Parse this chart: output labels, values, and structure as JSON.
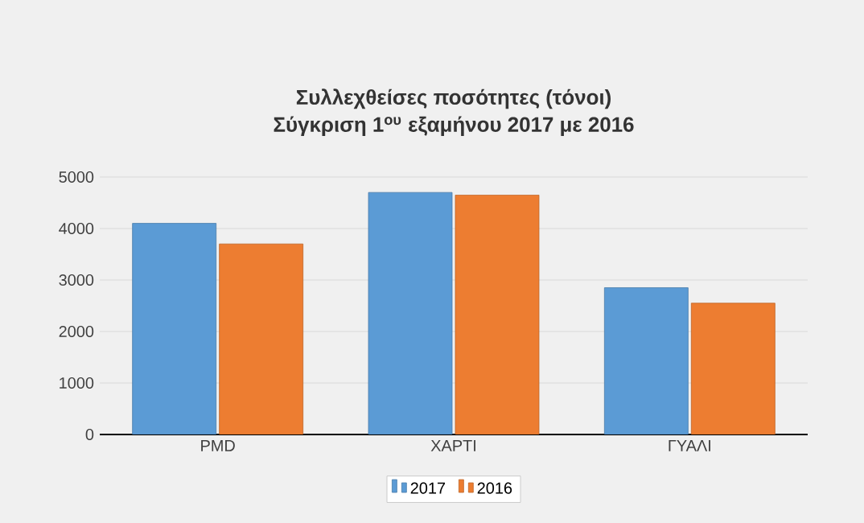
{
  "chart_data": {
    "type": "bar",
    "title": "Συλλεχθείσες ποσότητες (τόνοι)",
    "subtitle": "Σύγκριση 1$^{ου}$ εξαμήνου 2017 με 2016",
    "categories": [
      "PMD",
      "ΧΑΡΤΙ",
      "ΓΥΑΛΙ"
    ],
    "series": [
      {
        "name": "2017",
        "color": "#5b9bd5",
        "values": [
          4100,
          4700,
          2850
        ]
      },
      {
        "name": "2016",
        "color": "#ed7d31",
        "values": [
          3700,
          4650,
          2550
        ]
      }
    ],
    "ylim": [
      0,
      5000
    ],
    "yticks": [
      0,
      1000,
      2000,
      3000,
      4000,
      5000
    ],
    "grid": "y",
    "legend": "bottom"
  }
}
